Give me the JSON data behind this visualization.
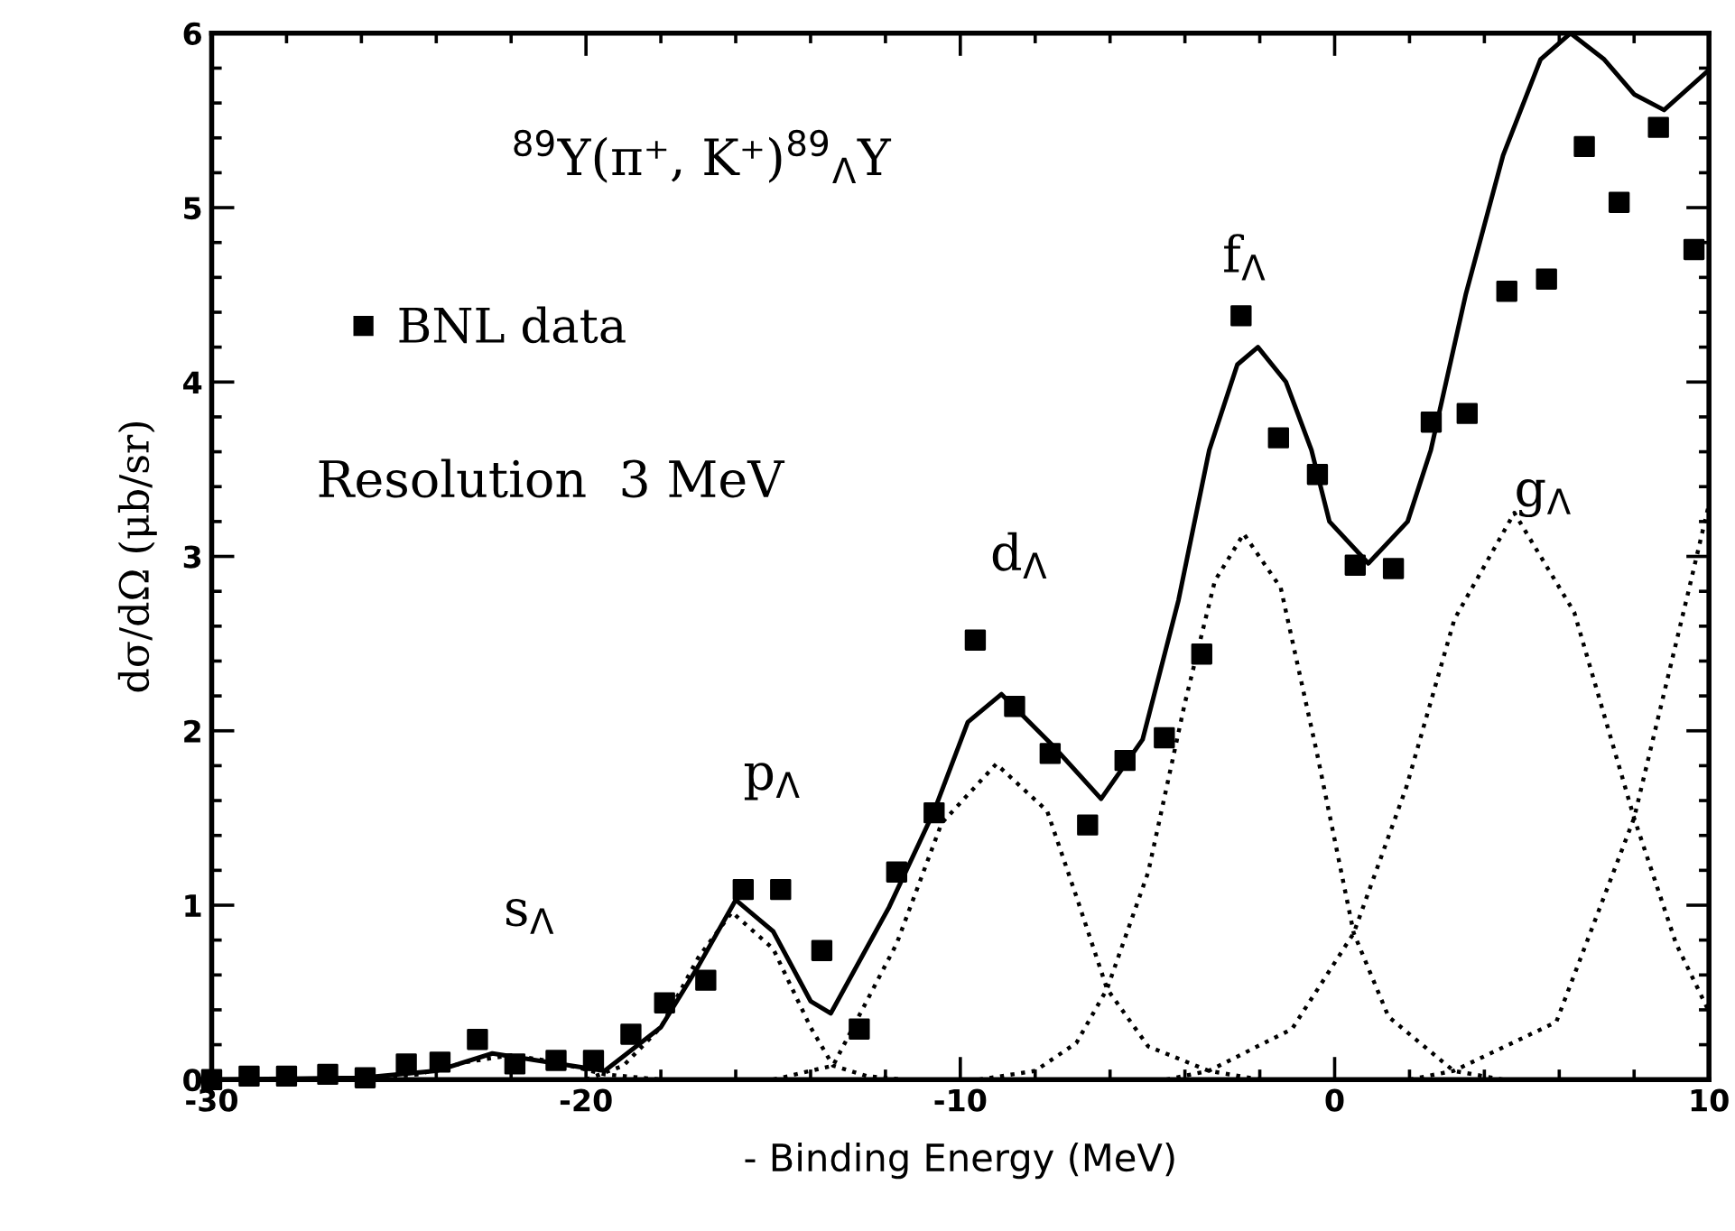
{
  "chart_data": {
    "type": "scatter",
    "xlabel": "- Binding Energy (MeV)",
    "ylabel": "dσ/dΩ (μb/sr)",
    "xlim": [
      -30,
      10
    ],
    "ylim": [
      0,
      6
    ],
    "xticks": [
      -30,
      {
        "value": -28,
        "label": null
      },
      {
        "value": -26,
        "label": null
      },
      {
        "value": -24,
        "label": null
      },
      {
        "value": -22,
        "label": null
      },
      -20,
      {
        "value": -18,
        "label": null
      },
      {
        "value": -16,
        "label": null
      },
      {
        "value": -14,
        "label": null
      },
      {
        "value": -12,
        "label": null
      },
      -10,
      {
        "value": -8,
        "label": null
      },
      {
        "value": -6,
        "label": null
      },
      {
        "value": -4,
        "label": null
      },
      {
        "value": -2,
        "label": null
      },
      0,
      {
        "value": 2,
        "label": null
      },
      {
        "value": 4,
        "label": null
      },
      {
        "value": 6,
        "label": null
      },
      {
        "value": 8,
        "label": null
      },
      10
    ],
    "yticks": [
      0,
      {
        "value": 0.2,
        "label": null
      },
      {
        "value": 0.4,
        "label": null
      },
      {
        "value": 0.6,
        "label": null
      },
      {
        "value": 0.8,
        "label": null
      },
      1,
      {
        "value": 1.2,
        "label": null
      },
      {
        "value": 1.4,
        "label": null
      },
      {
        "value": 1.6,
        "label": null
      },
      {
        "value": 1.8,
        "label": null
      },
      2,
      {
        "value": 2.2,
        "label": null
      },
      {
        "value": 2.4,
        "label": null
      },
      {
        "value": 2.6,
        "label": null
      },
      {
        "value": 2.8,
        "label": null
      },
      3,
      {
        "value": 3.2,
        "label": null
      },
      {
        "value": 3.4,
        "label": null
      },
      {
        "value": 3.6,
        "label": null
      },
      {
        "value": 3.8,
        "label": null
      },
      4,
      {
        "value": 4.2,
        "label": null
      },
      {
        "value": 4.4,
        "label": null
      },
      {
        "value": 4.6,
        "label": null
      },
      {
        "value": 4.8,
        "label": null
      },
      5,
      {
        "value": 5.2,
        "label": null
      },
      {
        "value": 5.4,
        "label": null
      },
      {
        "value": 5.6,
        "label": null
      },
      {
        "value": 5.8,
        "label": null
      },
      6
    ],
    "grid": false,
    "legend": "top left",
    "series": [
      {
        "name": "BNL data",
        "marker": "square",
        "color": "#000000",
        "x": [
          -30,
          -29.0,
          -28.0,
          -26.9,
          -25.9,
          -24.8,
          -23.9,
          -22.9,
          -21.9,
          -20.8,
          -19.8,
          -18.8,
          -17.9,
          -16.8,
          -15.8,
          -14.8,
          -13.7,
          -12.7,
          -11.7,
          -10.7,
          -9.6,
          -8.55,
          -7.6,
          -6.6,
          -5.6,
          -4.55,
          -3.55,
          -2.5,
          -1.5,
          -0.46,
          0.55,
          1.57,
          2.58,
          3.54,
          4.6,
          5.66,
          6.67,
          7.6,
          8.65,
          9.6
        ],
        "values": [
          0,
          0.02,
          0.02,
          0.03,
          0.01,
          0.09,
          0.1,
          0.23,
          0.09,
          0.11,
          0.11,
          0.26,
          0.44,
          0.57,
          1.09,
          1.09,
          0.74,
          0.29,
          1.19,
          1.53,
          2.52,
          2.14,
          1.87,
          1.46,
          1.83,
          1.96,
          2.44,
          4.38,
          3.68,
          3.47,
          2.95,
          2.93,
          3.77,
          3.82,
          4.52,
          4.59,
          5.35,
          5.03,
          5.46,
          4.76
        ]
      },
      {
        "type": "line",
        "line_style": "solid",
        "color": "#000000",
        "x": [
          -30,
          -26,
          -24,
          -22.5,
          -21,
          -19.5,
          -18,
          -17,
          -16,
          -15,
          -14,
          -13.46,
          -11.9,
          -10.7,
          -9.8,
          -8.9,
          -7.55,
          -6.24,
          -5.13,
          -4.17,
          -3.35,
          -2.6,
          -2.05,
          -1.3,
          -0.62,
          -0.14,
          0.9,
          1.95,
          2.57,
          3.5,
          4.5,
          5.5,
          6.3,
          7.2,
          8.0,
          8.8,
          10
        ],
        "values": [
          0,
          0.01,
          0.05,
          0.15,
          0.1,
          0.05,
          0.3,
          0.65,
          1.03,
          0.85,
          0.45,
          0.38,
          0.99,
          1.54,
          2.05,
          2.21,
          1.92,
          1.61,
          1.95,
          2.75,
          3.61,
          4.1,
          4.2,
          4.0,
          3.61,
          3.2,
          2.96,
          3.2,
          3.61,
          4.5,
          5.3,
          5.85,
          6.0,
          5.85,
          5.65,
          5.56,
          5.79
        ]
      },
      {
        "type": "line",
        "line_style": "dotted",
        "color": "#000000",
        "x": [
          -26,
          -24.5,
          -23.2,
          -22,
          -20.8,
          -19.5,
          -18
        ],
        "values": [
          0,
          0.03,
          0.1,
          0.14,
          0.1,
          0.03,
          0
        ]
      },
      {
        "type": "line",
        "line_style": "dotted",
        "color": "#000000",
        "x": [
          -20,
          -19,
          -18,
          -17,
          -16.1,
          -15,
          -14,
          -13.4,
          -12.5,
          -11.5
        ],
        "values": [
          0,
          0.08,
          0.3,
          0.7,
          0.96,
          0.75,
          0.3,
          0.08,
          0.02,
          0
        ]
      },
      {
        "type": "line",
        "line_style": "dotted",
        "color": "#000000",
        "x": [
          -15,
          -13.4,
          -11.7,
          -10.5,
          -9.04,
          -7.68,
          -6.9,
          -6.08,
          -4.98,
          -3.36,
          -2
        ],
        "values": [
          0,
          0.08,
          0.78,
          1.47,
          1.81,
          1.54,
          1.05,
          0.52,
          0.19,
          0.05,
          0
        ]
      },
      {
        "type": "line",
        "line_style": "dotted",
        "color": "#000000",
        "x": [
          -9.5,
          -8.0,
          -6.9,
          -6.08,
          -4.98,
          -4.0,
          -3.2,
          -2.43,
          -1.44,
          -0.48,
          0.51,
          1.44,
          3.18,
          4.5
        ],
        "values": [
          0,
          0.05,
          0.21,
          0.52,
          1.19,
          2.16,
          2.86,
          3.13,
          2.82,
          1.88,
          0.84,
          0.36,
          0.05,
          0
        ]
      },
      {
        "type": "line",
        "line_style": "dotted",
        "color": "#000000",
        "x": [
          -4.5,
          -3.36,
          -1.14,
          0.51,
          1.92,
          3.2,
          4.8,
          6.4,
          8.0,
          9.12,
          10
        ],
        "values": [
          0,
          0.05,
          0.29,
          0.84,
          1.68,
          2.64,
          3.25,
          2.68,
          1.5,
          0.78,
          0.39
        ]
      },
      {
        "type": "line",
        "line_style": "dotted",
        "color": "#000000",
        "x": [
          2,
          3.18,
          5.92,
          8.0,
          9.43,
          10
        ],
        "values": [
          0,
          0.05,
          0.33,
          1.5,
          2.78,
          3.3
        ]
      }
    ],
    "annotations": [
      "$^{89}$Y(π⁺, K⁺)$^{89}$$_{Λ}$Y",
      "Resolution  3 MeV",
      "s$_{Λ}$",
      "p$_{Λ}$",
      "d$_{Λ}$",
      "f$_{Λ}$",
      "g$_{Λ}$"
    ]
  }
}
